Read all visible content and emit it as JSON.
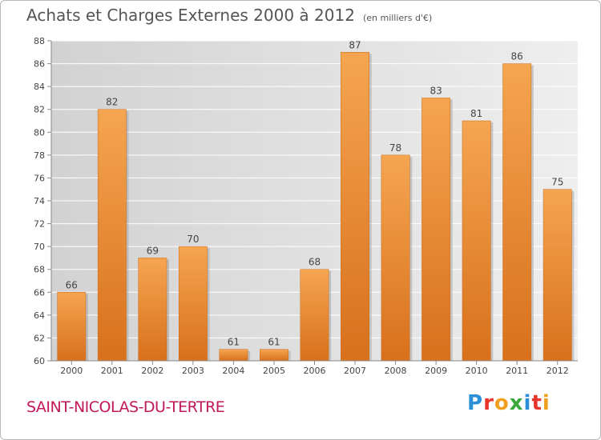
{
  "chart_data": {
    "type": "bar",
    "title": "Achats et Charges Externes 2000 à 2012",
    "subtitle": "(en milliers d'€)",
    "xlabel": "",
    "ylabel": "",
    "categories": [
      "2000",
      "2001",
      "2002",
      "2003",
      "2004",
      "2005",
      "2006",
      "2007",
      "2008",
      "2009",
      "2010",
      "2011",
      "2012"
    ],
    "values": [
      66,
      82,
      69,
      70,
      61,
      61,
      68,
      87,
      78,
      83,
      81,
      86,
      75
    ],
    "ylim": [
      60,
      88
    ],
    "yticks": [
      60,
      62,
      64,
      66,
      68,
      70,
      72,
      74,
      76,
      78,
      80,
      82,
      84,
      86,
      88
    ],
    "grid": true,
    "bar_color": "#f0963c"
  },
  "commune_name": "SAINT-NICOLAS-DU-TERTRE",
  "logo_text": "Proxiti"
}
